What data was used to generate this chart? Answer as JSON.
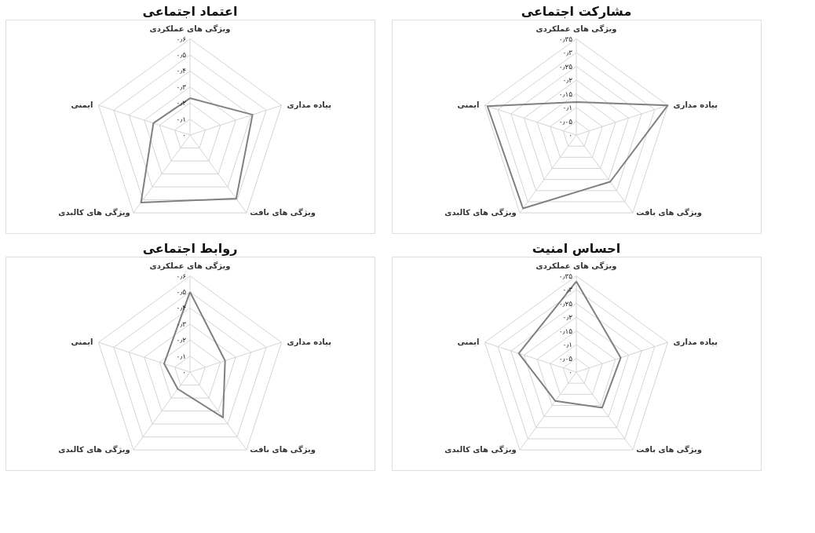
{
  "chart_data": [
    {
      "type": "radar",
      "title": "اعتماد اجتماعی",
      "categories": [
        "ویژگی های عملکردی",
        "پیاده مداری",
        "ویژگی های بافت",
        "ویژگی های کالبدی",
        "ایمنی"
      ],
      "ylim": [
        0,
        0.6
      ],
      "yticks": [
        {
          "value": 0,
          "label": "۰"
        },
        {
          "value": 0.1,
          "label": "۰٫۱"
        },
        {
          "value": 0.2,
          "label": "۰٫۲"
        },
        {
          "value": 0.3,
          "label": "۰٫۳"
        },
        {
          "value": 0.4,
          "label": "۰٫۴"
        },
        {
          "value": 0.5,
          "label": "۰٫۵"
        },
        {
          "value": 0.6,
          "label": "۰٫۶"
        }
      ],
      "grid": true,
      "series": [
        {
          "color": "#808080",
          "values": [
            0.23,
            0.41,
            0.49,
            0.52,
            0.24
          ]
        }
      ]
    },
    {
      "type": "radar",
      "title": "مشارکت اجتماعی",
      "categories": [
        "ویژگی های عملکردی",
        "پیاده مداری",
        "ویژگی های بافت",
        "ویژگی های کالبدی",
        "ایمنی"
      ],
      "ylim": [
        0,
        0.35
      ],
      "yticks": [
        {
          "value": 0,
          "label": "۰"
        },
        {
          "value": 0.05,
          "label": "۰٫۰۵"
        },
        {
          "value": 0.1,
          "label": "۰٫۱"
        },
        {
          "value": 0.15,
          "label": "۰٫۱۵"
        },
        {
          "value": 0.2,
          "label": "۰٫۲"
        },
        {
          "value": 0.25,
          "label": "۰٫۲۵"
        },
        {
          "value": 0.3,
          "label": "۰٫۳"
        },
        {
          "value": 0.35,
          "label": "۰٫۳۵"
        }
      ],
      "grid": true,
      "series": [
        {
          "color": "#808080",
          "values": [
            0.12,
            0.35,
            0.21,
            0.33,
            0.34
          ]
        }
      ]
    },
    {
      "type": "radar",
      "title": "روابط اجتماعی",
      "categories": [
        "ویژگی های عملکردی",
        "پیاده مداری",
        "ویژگی های بافت",
        "ویژگی های کالبدی",
        "ایمنی"
      ],
      "ylim": [
        0,
        0.6
      ],
      "yticks": [
        {
          "value": 0,
          "label": "۰"
        },
        {
          "value": 0.1,
          "label": "۰٫۱"
        },
        {
          "value": 0.2,
          "label": "۰٫۲"
        },
        {
          "value": 0.3,
          "label": "۰٫۳"
        },
        {
          "value": 0.4,
          "label": "۰٫۴"
        },
        {
          "value": 0.5,
          "label": "۰٫۵"
        },
        {
          "value": 0.6,
          "label": "۰٫۶"
        }
      ],
      "grid": true,
      "series": [
        {
          "color": "#808080",
          "values": [
            0.5,
            0.23,
            0.35,
            0.13,
            0.17
          ]
        }
      ]
    },
    {
      "type": "radar",
      "title": "احساس امنیت",
      "categories": [
        "ویژگی های عملکردی",
        "پیاده مداری",
        "ویژگی های بافت",
        "ویژگی های کالبدی",
        "ایمنی"
      ],
      "ylim": [
        0,
        0.35
      ],
      "yticks": [
        {
          "value": 0,
          "label": "۰"
        },
        {
          "value": 0.05,
          "label": "۰٫۰۵"
        },
        {
          "value": 0.1,
          "label": "۰٫۱"
        },
        {
          "value": 0.15,
          "label": "۰٫۱۵"
        },
        {
          "value": 0.2,
          "label": "۰٫۲"
        },
        {
          "value": 0.25,
          "label": "۰٫۲۵"
        },
        {
          "value": 0.3,
          "label": "۰٫۳"
        },
        {
          "value": 0.35,
          "label": "۰٫۳۵"
        }
      ],
      "grid": true,
      "series": [
        {
          "color": "#808080",
          "values": [
            0.33,
            0.17,
            0.16,
            0.13,
            0.22
          ]
        }
      ]
    }
  ]
}
